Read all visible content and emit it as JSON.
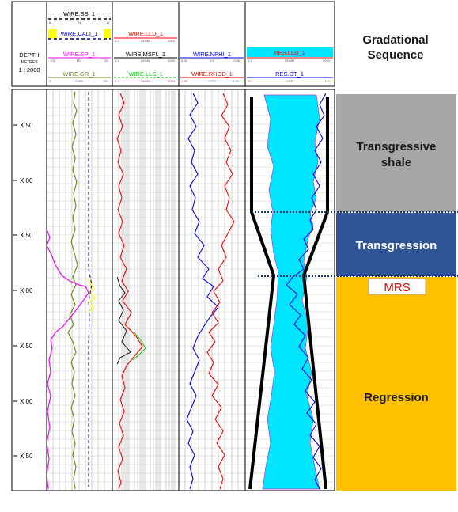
{
  "header": {
    "depth_title": "DEPTH",
    "depth_units": "METRES",
    "depth_scale": "1 : 2000",
    "track1_curves": [
      "WIRE.BS_1",
      "WIRE.CALI_1",
      "WIRE.SP_1",
      "WIRE.GR_1"
    ],
    "track2_curves": [
      "WIRE.LLD_1",
      "WIRE.MSFL_1",
      "WIRE.LLS_1"
    ],
    "track3_curves": [
      "WIRE.NPHI_1",
      "WIRE.RHOB_1"
    ],
    "track4_curves": [
      "RES.LLD_1",
      "RES.DT_1"
    ],
    "scale_track1": [
      "6",
      "IN",
      "16",
      "-100",
      "MV",
      "20",
      "0",
      "GAPI",
      "150"
    ],
    "scale_track2": [
      "0.2",
      "OHMM",
      "2000"
    ],
    "scale_track3": [
      "0.54",
      "V/V",
      "-0.06",
      "1.95",
      "G/C3",
      "2.95"
    ],
    "scale_track4": [
      "0.2",
      "OHMM",
      "2000",
      "40",
      "US/F",
      "140"
    ]
  },
  "sequence": {
    "title_line1": "Gradational",
    "title_line2": "Sequence",
    "zones": [
      {
        "label": "Transgressive",
        "label2": "shale",
        "color": "#a6a6a6",
        "text_color": "#1a1a1a"
      },
      {
        "label": "Transgression",
        "label2": "",
        "color": "#2f5597",
        "text_color": "#ffffff"
      },
      {
        "label": "Regression",
        "label2": "",
        "color": "#ffc000",
        "text_color": "#1a1a1a"
      }
    ],
    "mrs_label": "MRS",
    "mrs_color": "#e60000"
  },
  "depth_ticks": [
    "X 50",
    "X 00",
    "X 50",
    "X 00",
    "X 50",
    "X 00",
    "X 50"
  ],
  "colors": {
    "gr": "#6b8e23",
    "sp": "#ff00ff",
    "cali": "#ffff00",
    "bs": "#000000",
    "lld": "#ff0000",
    "msfl": "#000000",
    "lls": "#00cc00",
    "nphi": "#0000ff",
    "rhob": "#ff0000",
    "res_fill": "#00e5ff",
    "dt": "#0000ff"
  }
}
